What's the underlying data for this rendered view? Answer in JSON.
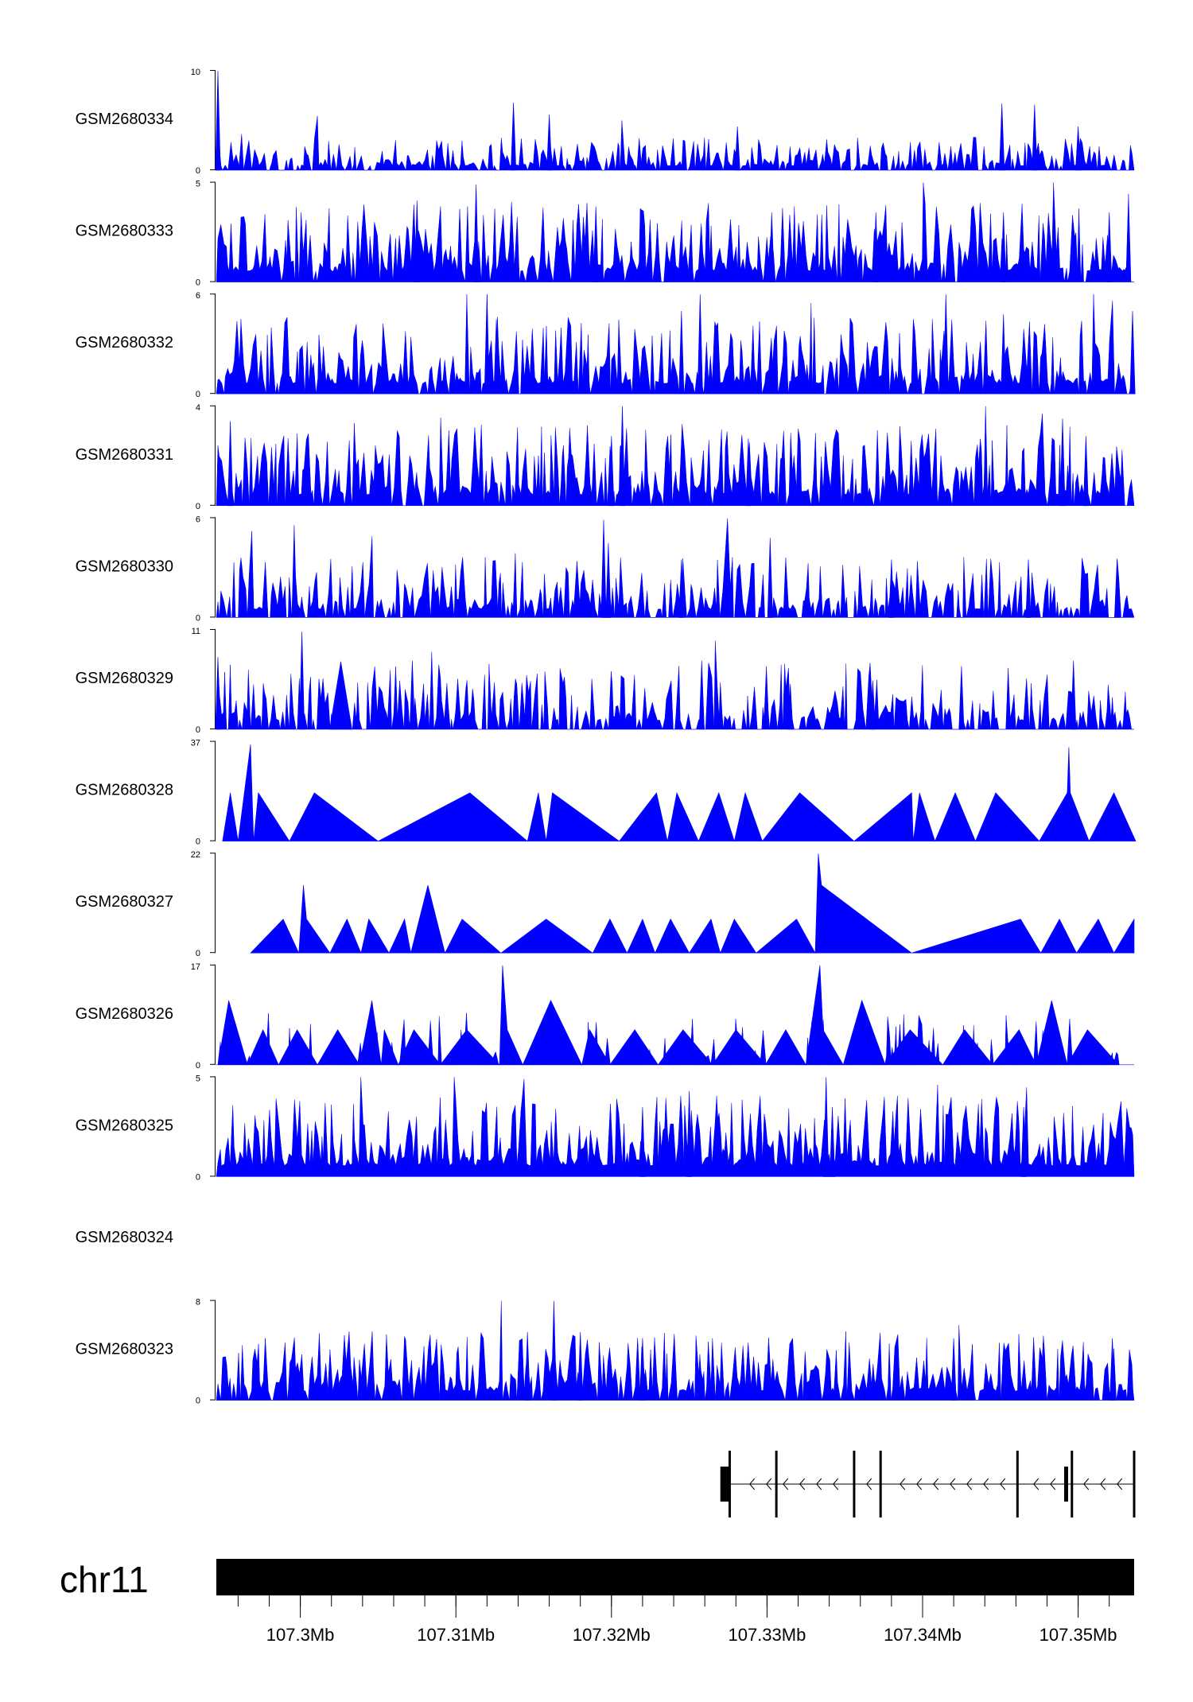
{
  "chart_data": {
    "type": "area",
    "genome_axis": {
      "chromosome": "chr11",
      "range_mb": [
        107.2946,
        107.3536
      ],
      "tick_labels": [
        "107.3Mb",
        "107.31Mb",
        "107.32Mb",
        "107.33Mb",
        "107.34Mb",
        "107.35Mb"
      ],
      "major_ticks_mb": [
        107.3,
        107.31,
        107.32,
        107.33,
        107.34,
        107.35
      ],
      "minor_tick_step_mb": 0.002
    },
    "colors": {
      "track_fill": "#0000ff",
      "axis": "#000000",
      "gene": "#000000",
      "ideogram": "#000000"
    },
    "series": [
      {
        "name": "GSM2680334",
        "ymax": 10,
        "ymax_label": "10",
        "ymin_label": "0",
        "peaks": [
          [
            107.2947,
            10,
            "spike"
          ],
          [
            107.3137,
            6.8,
            "spike"
          ],
          [
            107.316,
            5.6,
            "spike"
          ],
          [
            107.3281,
            4.4,
            "spike"
          ],
          [
            107.3451,
            6.7,
            "spike"
          ],
          [
            107.3472,
            6.6,
            "spike"
          ],
          [
            107.35,
            4.4,
            "spike"
          ]
        ],
        "noise": {
          "level": 1.8,
          "density": 0.8,
          "seed": 34
        }
      },
      {
        "name": "GSM2680333",
        "ymax": 5,
        "ymax_label": "5",
        "ymin_label": "0",
        "peaks": [
          [
            107.3075,
            4.1,
            "spike"
          ],
          [
            107.3113,
            4.9,
            "spike"
          ],
          [
            107.319,
            3.8,
            "spike"
          ],
          [
            107.3303,
            3.5,
            "spike"
          ],
          [
            107.337,
            3.5,
            "spike"
          ],
          [
            107.3452,
            3.5,
            "spike"
          ],
          [
            107.352,
            3.5,
            "spike"
          ]
        ],
        "noise": {
          "level": 2.2,
          "density": 0.9,
          "seed": 33
        }
      },
      {
        "name": "GSM2680332",
        "ymax": 6,
        "ymax_label": "6",
        "ymin_label": "0",
        "peaks": [
          [
            107.312,
            6,
            "spike"
          ],
          [
            107.3126,
            4.5,
            "spike"
          ],
          [
            107.3245,
            5,
            "spike"
          ],
          [
            107.3257,
            6,
            "spike"
          ],
          [
            107.3415,
            6,
            "spike"
          ],
          [
            107.3452,
            4.8,
            "spike"
          ],
          [
            107.3535,
            5,
            "spike"
          ]
        ],
        "noise": {
          "level": 2.5,
          "density": 0.9,
          "seed": 32
        }
      },
      {
        "name": "GSM2680331",
        "ymax": 4,
        "ymax_label": "4",
        "ymin_label": "0",
        "peaks": [
          [
            107.2955,
            3.4,
            "spike"
          ],
          [
            107.3207,
            4,
            "spike"
          ],
          [
            107.32,
            2.8,
            "spike"
          ],
          [
            107.3288,
            2.7,
            "spike"
          ],
          [
            107.349,
            3.5,
            "spike"
          ],
          [
            107.3505,
            2.8,
            "spike"
          ]
        ],
        "noise": {
          "level": 1.8,
          "density": 0.9,
          "seed": 31
        }
      },
      {
        "name": "GSM2680330",
        "ymax": 6,
        "ymax_label": "6",
        "ymin_label": "0",
        "peaks": [
          [
            107.3195,
            5.9,
            "spike"
          ],
          [
            107.3198,
            4.5,
            "spike"
          ],
          [
            107.3245,
            3.5,
            "spike"
          ],
          [
            107.3302,
            4.8,
            "spike"
          ],
          [
            107.338,
            3.5,
            "spike"
          ],
          [
            107.3468,
            3.5,
            "spike"
          ],
          [
            107.3525,
            3.5,
            "spike"
          ]
        ],
        "noise": {
          "level": 2.0,
          "density": 0.75,
          "seed": 30
        }
      },
      {
        "name": "GSM2680329",
        "ymax": 11,
        "ymax_label": "11",
        "ymin_label": "0",
        "peaks": [
          [
            107.2947,
            8,
            "spike"
          ],
          [
            107.3001,
            10.8,
            "spike"
          ],
          [
            107.3026,
            7.5,
            "tri"
          ],
          [
            107.3072,
            7.6,
            "spike"
          ],
          [
            107.3258,
            7.6,
            "spike"
          ],
          [
            107.3315,
            5,
            "spike"
          ],
          [
            107.3368,
            5.4,
            "spike"
          ],
          [
            107.3425,
            7,
            "spike"
          ],
          [
            107.3497,
            7.6,
            "spike"
          ]
        ],
        "noise": {
          "level": 4.0,
          "density": 0.7,
          "seed": 29
        }
      },
      {
        "name": "GSM2680328",
        "ymax": 37,
        "ymax_label": "37",
        "ymin_label": "0",
        "profile": [
          [
            107.295,
            0
          ],
          [
            107.2955,
            18
          ],
          [
            107.296,
            0
          ],
          [
            107.2968,
            36
          ],
          [
            107.297,
            0
          ],
          [
            107.2973,
            18
          ],
          [
            107.2993,
            0
          ],
          [
            107.3009,
            18
          ],
          [
            107.305,
            0
          ],
          [
            107.3109,
            18
          ],
          [
            107.3146,
            0
          ],
          [
            107.3153,
            18
          ],
          [
            107.3158,
            0
          ],
          [
            107.3162,
            18
          ],
          [
            107.3205,
            0
          ],
          [
            107.3229,
            18
          ],
          [
            107.3236,
            0
          ],
          [
            107.3242,
            18
          ],
          [
            107.3256,
            0
          ],
          [
            107.3269,
            18
          ],
          [
            107.3279,
            0
          ],
          [
            107.3286,
            18
          ],
          [
            107.3297,
            0
          ],
          [
            107.3321,
            18
          ],
          [
            107.3356,
            0
          ],
          [
            107.3393,
            18
          ],
          [
            107.3394,
            0
          ],
          [
            107.3398,
            18
          ],
          [
            107.3408,
            0
          ],
          [
            107.3421,
            18
          ],
          [
            107.3434,
            0
          ],
          [
            107.3447,
            18
          ],
          [
            107.3475,
            0
          ],
          [
            107.3493,
            18
          ],
          [
            107.3494,
            35
          ],
          [
            107.3495,
            18
          ],
          [
            107.3507,
            0
          ],
          [
            107.3523,
            18
          ],
          [
            107.3537,
            0
          ]
        ]
      },
      {
        "name": "GSM2680327",
        "ymax": 22,
        "ymax_label": "22",
        "ymin_label": "0",
        "profile": [
          [
            107.2968,
            0
          ],
          [
            107.2989,
            7.5
          ],
          [
            107.2999,
            0
          ],
          [
            107.3002,
            15
          ],
          [
            107.3004,
            7.5
          ],
          [
            107.3019,
            0
          ],
          [
            107.303,
            7.5
          ],
          [
            107.3039,
            0
          ],
          [
            107.3044,
            7.5
          ],
          [
            107.3057,
            0
          ],
          [
            107.3067,
            7.5
          ],
          [
            107.3071,
            0
          ],
          [
            107.3082,
            15
          ],
          [
            107.3093,
            0
          ],
          [
            107.3104,
            7.5
          ],
          [
            107.3129,
            0
          ],
          [
            107.3158,
            7.5
          ],
          [
            107.3188,
            0
          ],
          [
            107.3199,
            7.5
          ],
          [
            107.321,
            0
          ],
          [
            107.322,
            7.5
          ],
          [
            107.3228,
            0
          ],
          [
            107.3238,
            7.5
          ],
          [
            107.325,
            0
          ],
          [
            107.3264,
            7.5
          ],
          [
            107.327,
            0
          ],
          [
            107.3279,
            7.5
          ],
          [
            107.3293,
            0
          ],
          [
            107.3319,
            7.5
          ],
          [
            107.3331,
            0
          ],
          [
            107.3333,
            22
          ],
          [
            107.3335,
            15
          ],
          [
            107.3393,
            0
          ],
          [
            107.3463,
            7.5
          ],
          [
            107.3476,
            0
          ],
          [
            107.3488,
            7.5
          ],
          [
            107.3499,
            0
          ],
          [
            107.3513,
            7.5
          ],
          [
            107.3523,
            0
          ],
          [
            107.3536,
            7.5
          ],
          [
            107.3536,
            0
          ]
        ]
      },
      {
        "name": "GSM2680326",
        "ymax": 17,
        "ymax_label": "17",
        "ymin_label": "0",
        "profile": [
          [
            107.2947,
            0
          ],
          [
            107.2954,
            11
          ],
          [
            107.2966,
            0
          ],
          [
            107.2976,
            6
          ],
          [
            107.2986,
            0
          ],
          [
            107.2998,
            6
          ],
          [
            107.3011,
            0
          ],
          [
            107.3024,
            6
          ],
          [
            107.3038,
            0
          ],
          [
            107.3046,
            11
          ],
          [
            107.3052,
            0
          ],
          [
            107.3054,
            6
          ],
          [
            107.3063,
            0
          ],
          [
            107.3073,
            6
          ],
          [
            107.309,
            0
          ],
          [
            107.3107,
            6
          ],
          [
            107.3128,
            0
          ],
          [
            107.313,
            17
          ],
          [
            107.3133,
            6
          ],
          [
            107.3143,
            0
          ],
          [
            107.3161,
            11
          ],
          [
            107.3181,
            0
          ],
          [
            107.3186,
            6
          ],
          [
            107.3199,
            0
          ],
          [
            107.3215,
            6
          ],
          [
            107.323,
            0
          ],
          [
            107.3246,
            6
          ],
          [
            107.3265,
            0
          ],
          [
            107.328,
            6
          ],
          [
            107.3299,
            0
          ],
          [
            107.3312,
            6
          ],
          [
            107.3325,
            0
          ],
          [
            107.3334,
            17
          ],
          [
            107.3336,
            6
          ],
          [
            107.3349,
            0
          ],
          [
            107.3361,
            11
          ],
          [
            107.3376,
            0
          ],
          [
            107.3392,
            6
          ],
          [
            107.3413,
            0
          ],
          [
            107.3427,
            6
          ],
          [
            107.3445,
            0
          ],
          [
            107.3462,
            6
          ],
          [
            107.3473,
            0
          ],
          [
            107.3483,
            11
          ],
          [
            107.3493,
            0
          ],
          [
            107.3506,
            6
          ],
          [
            107.3526,
            0
          ]
        ],
        "noise": {
          "level": 5.0,
          "density": 0.25,
          "seed": 26
        }
      },
      {
        "name": "GSM2680325",
        "ymax": 5,
        "ymax_label": "5",
        "ymin_label": "0",
        "peaks": [
          [
            107.3338,
            5,
            "spike"
          ],
          [
            107.3342,
            3.5,
            "spike"
          ],
          [
            107.325,
            4.3,
            "spike"
          ],
          [
            107.3465,
            3.5,
            "spike"
          ],
          [
            107.322,
            3.5,
            "spike"
          ]
        ],
        "noise": {
          "level": 2.2,
          "density": 1.0,
          "seed": 25
        }
      },
      {
        "name": "GSM2680324",
        "empty": true
      },
      {
        "name": "GSM2680323",
        "ymax": 8,
        "ymax_label": "8",
        "ymin_label": "0",
        "peaks": [
          [
            107.3163,
            8,
            "spike"
          ],
          [
            107.3146,
            5.5,
            "spike"
          ],
          [
            107.318,
            5.5,
            "spike"
          ],
          [
            107.322,
            5,
            "spike"
          ],
          [
            107.342,
            5,
            "spike"
          ],
          [
            107.3522,
            5,
            "spike"
          ]
        ],
        "noise": {
          "level": 3.0,
          "density": 0.85,
          "seed": 23
        }
      }
    ],
    "gene_model": {
      "strand": "-",
      "span_mb": [
        107.327,
        107.3536
      ],
      "exons_mb": [
        107.3276,
        107.3306,
        107.3356,
        107.3373,
        107.3461,
        107.3496,
        107.3536
      ],
      "utr_block_mb": [
        107.327,
        107.3276
      ]
    }
  }
}
